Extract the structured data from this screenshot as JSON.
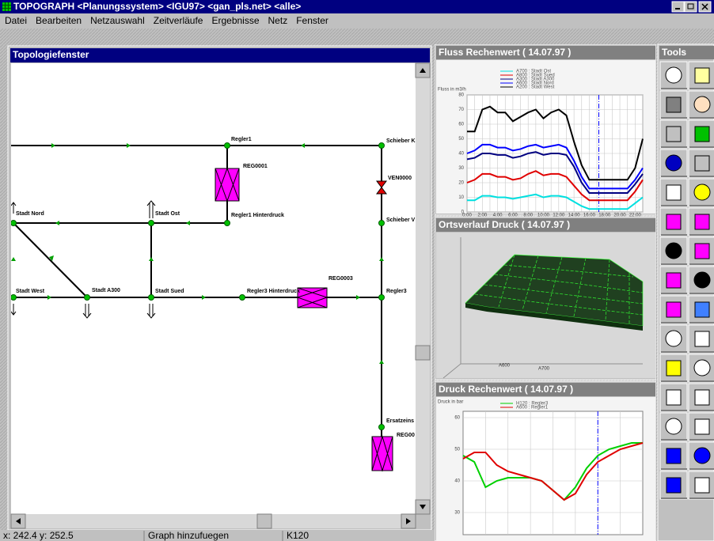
{
  "window": {
    "title": "TOPOGRAPH <Planungssystem> <IGU97> <gan_pls.net> <alle>",
    "menu": [
      "Datei",
      "Bearbeiten",
      "Netzauswahl",
      "Zeitverläufe",
      "Ergebnisse",
      "Netz",
      "Fenster"
    ]
  },
  "topology": {
    "title": "Topologiefenster",
    "nodes": [
      "Regler1",
      "REG0001",
      "Schieber K",
      "VEN0000",
      "Stadt Nord",
      "Stadt Ost",
      "Regler1 Hinterdruck",
      "Schieber V",
      "Stadt West",
      "Stadt A300",
      "Stadt Sued",
      "Regler3 Hinterdruck",
      "REG0003",
      "Regler3",
      "Ersatzeins",
      "REG00"
    ]
  },
  "chart_data": [
    {
      "type": "line",
      "title": "Fluss Rechenwert ( 14.07.97 )",
      "y_label": "Fluss in m3/h",
      "categories": [
        "0:00",
        null,
        "2:00",
        null,
        "4:00",
        null,
        "6:00",
        null,
        "8:00",
        null,
        "10:00",
        null,
        "12:00",
        null,
        "14:00",
        null,
        "16:00",
        null,
        "18:00",
        null,
        "20:00",
        null,
        "22:00",
        null
      ],
      "series": [
        {
          "name": "A700 : Stadt Ost",
          "color": "#00e0e0",
          "values": [
            8,
            8,
            11,
            11,
            10,
            10,
            9,
            10,
            11,
            12,
            10,
            11,
            11,
            10,
            7,
            4,
            2,
            2,
            2,
            2,
            2,
            2,
            6,
            10
          ]
        },
        {
          "name": "A800 : Stadt Sued",
          "color": "#e00000",
          "values": [
            20,
            22,
            26,
            26,
            24,
            24,
            22,
            23,
            26,
            28,
            25,
            26,
            26,
            24,
            18,
            12,
            8,
            8,
            8,
            8,
            8,
            8,
            14,
            22
          ]
        },
        {
          "name": "A300 : Stadt A300",
          "color": "#000080",
          "values": [
            36,
            37,
            40,
            40,
            39,
            39,
            37,
            38,
            40,
            41,
            39,
            40,
            40,
            39,
            31,
            20,
            13,
            13,
            13,
            13,
            13,
            13,
            19,
            26
          ]
        },
        {
          "name": "A600 : Stadt Nord",
          "color": "#0000ff",
          "values": [
            40,
            42,
            46,
            46,
            44,
            44,
            42,
            43,
            45,
            46,
            44,
            45,
            46,
            44,
            35,
            24,
            16,
            16,
            16,
            16,
            16,
            16,
            22,
            30
          ]
        },
        {
          "name": "A200 : Stadt West",
          "color": "#000000",
          "values": [
            55,
            55,
            70,
            72,
            68,
            68,
            62,
            65,
            68,
            70,
            64,
            68,
            70,
            66,
            48,
            32,
            22,
            22,
            22,
            22,
            22,
            22,
            30,
            50
          ]
        }
      ],
      "ylim": [
        0,
        80
      ],
      "yticks": [
        0,
        10,
        20,
        30,
        40,
        50,
        60,
        70,
        80
      ],
      "grid": true
    },
    {
      "type": "line",
      "title": "Druck Rechenwert ( 14.07.97 )",
      "y_label": "Druck in bar",
      "x": [
        0,
        1,
        2,
        3,
        4,
        5,
        6,
        7,
        8,
        9,
        10,
        11,
        12,
        13,
        14,
        15,
        16
      ],
      "xlim": [
        0,
        16
      ],
      "series": [
        {
          "name": "H120 : Regler3",
          "color": "#00d000",
          "values": [
            48,
            46,
            38,
            40,
            41,
            41,
            41,
            40,
            37,
            34,
            38,
            44,
            48,
            50,
            51,
            52,
            52
          ]
        },
        {
          "name": "A600 : Regler1",
          "color": "#e00000",
          "values": [
            47,
            49,
            49,
            45,
            43,
            42,
            41,
            40,
            37,
            34,
            36,
            42,
            46,
            48,
            50,
            51,
            52
          ]
        }
      ],
      "ylim": [
        23,
        62
      ],
      "yticks": [
        30,
        40,
        50,
        60
      ],
      "grid": true
    }
  ],
  "surface_view": {
    "title": "Ortsverlauf  Druck ( 14.07.97 )",
    "axis_labels": [
      "A600",
      "A700"
    ]
  },
  "tools": {
    "title": "Tools"
  },
  "status_bar": [
    "x: 242.4 y: 252.5",
    "Graph hinzufuegen",
    "K120"
  ]
}
